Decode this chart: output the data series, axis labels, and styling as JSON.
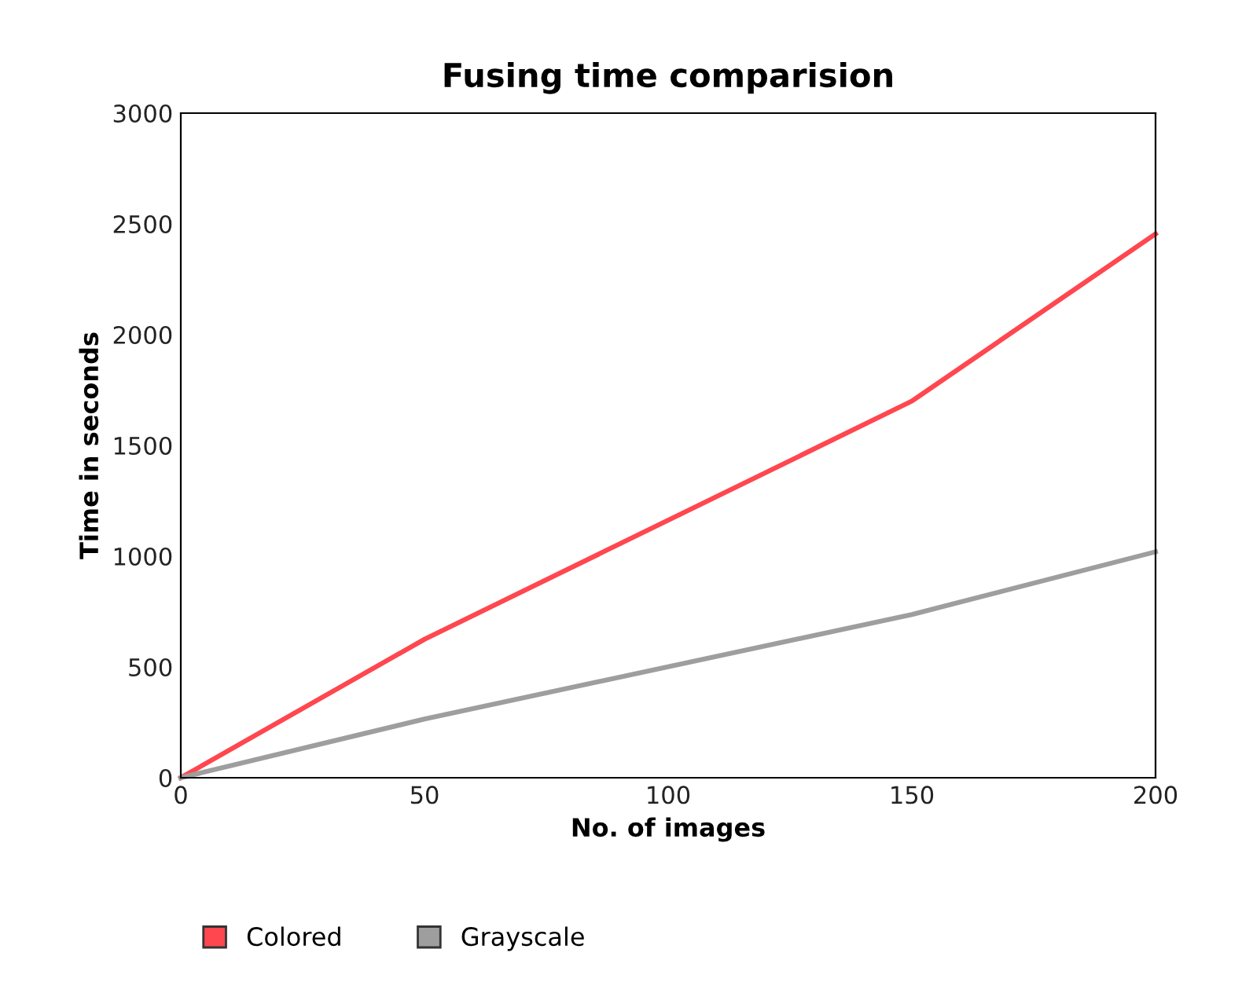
{
  "chart_data": {
    "type": "line",
    "title": "Fusing time comparision",
    "xlabel": "No. of images",
    "ylabel": "Time in seconds",
    "x": [
      0,
      50,
      150,
      200
    ],
    "series": [
      {
        "name": "Colored",
        "color": "#ff474f",
        "values": [
          0,
          625,
          1700,
          2455
        ]
      },
      {
        "name": "Grayscale",
        "color": "#9e9e9e",
        "values": [
          0,
          265,
          737,
          1020
        ]
      }
    ],
    "xlim": [
      0,
      200
    ],
    "xticks": [
      0,
      50,
      100,
      150,
      200
    ],
    "ylim": [
      0,
      3000
    ],
    "yticks": [
      0,
      500,
      1000,
      1500,
      2000,
      2500,
      3000
    ],
    "grid": false,
    "legend": "bottom",
    "marker": "none",
    "line_style": "solid"
  }
}
